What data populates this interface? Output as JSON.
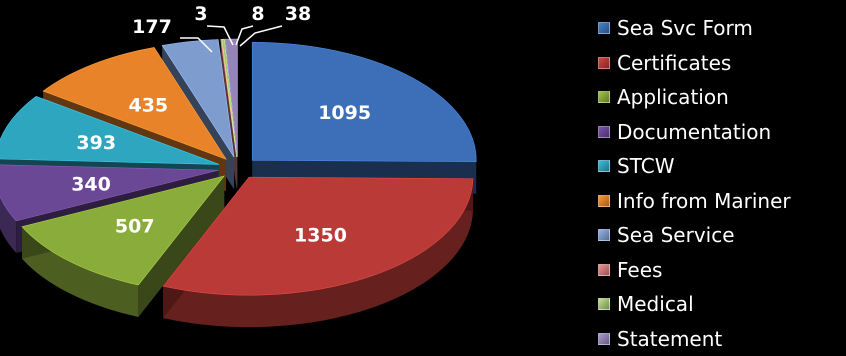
{
  "chart_data": {
    "type": "pie",
    "style": "3d-exploded",
    "title": "",
    "legend_position": "right",
    "slices": [
      {
        "label": "Sea Svc Form",
        "value": 1095,
        "color": "#3c6fb7"
      },
      {
        "label": "Certificates",
        "value": 1350,
        "color": "#b93a37"
      },
      {
        "label": "Application",
        "value": 507,
        "color": "#8aac3b"
      },
      {
        "label": "Documentation",
        "value": 340,
        "color": "#6b4896"
      },
      {
        "label": "STCW",
        "value": 393,
        "color": "#2ea6c0"
      },
      {
        "label": "Info from Mariner",
        "value": 435,
        "color": "#e8832a"
      },
      {
        "label": "Sea Service",
        "value": 177,
        "color": "#7f9ccf"
      },
      {
        "label": "Fees",
        "value": 3,
        "color": "#d17d7b"
      },
      {
        "label": "Medical",
        "value": 8,
        "color": "#a6c576"
      },
      {
        "label": "Statement",
        "value": 38,
        "color": "#9484b7"
      }
    ]
  }
}
